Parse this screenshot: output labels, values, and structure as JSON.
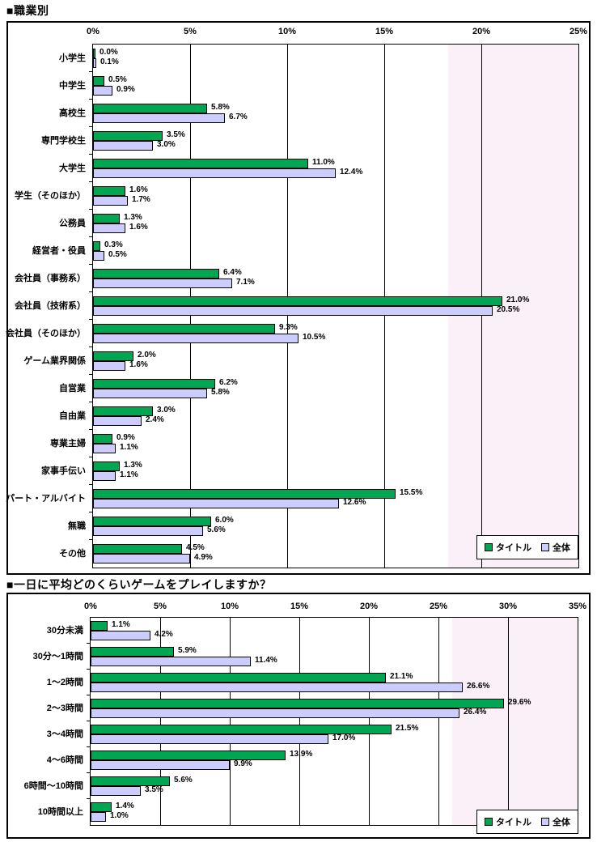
{
  "colors": {
    "title_series": "#00A651",
    "overall_series": "#CCCCFF",
    "bar_border": "#000000",
    "highlight_band": "#FBEFF8",
    "chart_border": "#000000",
    "background": "#FFFFFF",
    "text": "#000000"
  },
  "chart_data": [
    {
      "type": "bar",
      "orientation": "horizontal",
      "title": "■職業別",
      "categories": [
        "小学生",
        "中学生",
        "高校生",
        "専門学校生",
        "大学生",
        "学生（そのほか）",
        "公務員",
        "経営者・役員",
        "会社員（事務系）",
        "会社員（技術系）",
        "会社員（そのほか）",
        "ゲーム業界関係",
        "自営業",
        "自由業",
        "専業主婦",
        "家事手伝い",
        "パート・アルバイト",
        "無職",
        "その他"
      ],
      "series": [
        {
          "name": "タイトル",
          "values": [
            0.0,
            0.5,
            5.8,
            3.5,
            11.0,
            1.6,
            1.3,
            0.3,
            6.4,
            21.0,
            9.3,
            2.0,
            6.2,
            3.0,
            0.9,
            1.3,
            15.5,
            6.0,
            4.5
          ]
        },
        {
          "name": "全体",
          "values": [
            0.1,
            0.9,
            6.7,
            3.0,
            12.4,
            1.7,
            1.6,
            0.5,
            7.1,
            20.5,
            10.5,
            1.6,
            5.8,
            2.4,
            1.1,
            1.1,
            12.6,
            5.6,
            4.9
          ]
        }
      ],
      "xlim": [
        0,
        25
      ],
      "ticks": [
        "0%",
        "5%",
        "10%",
        "15%",
        "20%",
        "25%"
      ],
      "grid": true,
      "value_labels": "each bar, one decimal + %",
      "highlight_band": {
        "from": 18.3,
        "to": 25
      },
      "legend": {
        "position": "bottom-right",
        "items": [
          "タイトル",
          "全体"
        ]
      }
    },
    {
      "type": "bar",
      "orientation": "horizontal",
      "title": "■一日に平均どのくらいゲームをプレイしますか？",
      "categories": [
        "30分未満",
        "30分～1時間",
        "1～2時間",
        "2～3時間",
        "3～4時間",
        "4～6時間",
        "6時間～10時間",
        "10時間以上"
      ],
      "series": [
        {
          "name": "タイトル",
          "values": [
            1.1,
            5.9,
            21.1,
            29.6,
            21.5,
            13.9,
            5.6,
            1.4
          ]
        },
        {
          "name": "全体",
          "values": [
            4.2,
            11.4,
            26.6,
            26.4,
            17.0,
            9.9,
            3.5,
            1.0
          ]
        }
      ],
      "xlim": [
        0,
        35
      ],
      "ticks": [
        "0%",
        "5%",
        "10%",
        "15%",
        "20%",
        "25%",
        "30%",
        "35%"
      ],
      "grid": true,
      "value_labels": "each bar, one decimal + %",
      "highlight_band": {
        "from": 26.0,
        "to": 35
      },
      "legend": {
        "position": "bottom-right",
        "items": [
          "タイトル",
          "全体"
        ]
      }
    }
  ]
}
